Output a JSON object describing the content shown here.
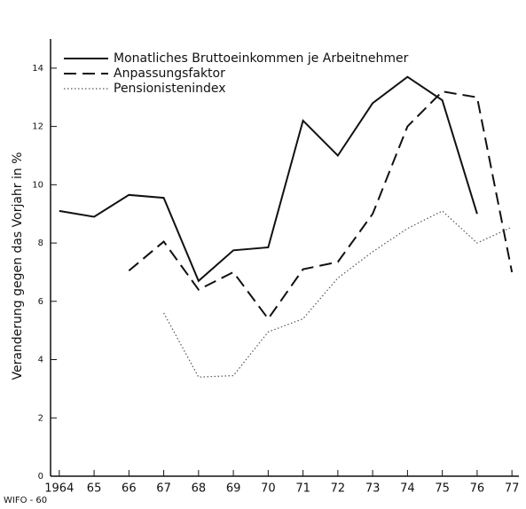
{
  "chart_data": {
    "type": "line",
    "y_label": "Veranderung gegen das Vorjahr in %",
    "source": "WIFO - 60",
    "x": [
      1964,
      1965,
      1966,
      1967,
      1968,
      1969,
      1970,
      1971,
      1972,
      1973,
      1974,
      1975,
      1976,
      1977
    ],
    "series": [
      {
        "name": "Monatliches Bruttoeinkommen je Arbeitnehmer",
        "color": "#111111",
        "dash": "solid",
        "values": [
          9.1,
          8.9,
          9.65,
          9.55,
          6.7,
          7.75,
          7.85,
          12.2,
          11.0,
          12.8,
          13.7,
          12.9,
          9.0,
          null
        ]
      },
      {
        "name": "Anpassungsfaktor",
        "color": "#111111",
        "dash": "dashed",
        "values": [
          null,
          null,
          7.05,
          8.05,
          6.4,
          7.0,
          5.4,
          7.1,
          7.35,
          9.0,
          12.0,
          13.2,
          13.0,
          7.0
        ]
      },
      {
        "name": "Pensionistenindex",
        "color": "#555555",
        "dash": "dotted",
        "values": [
          null,
          null,
          null,
          5.6,
          3.4,
          3.45,
          4.95,
          5.4,
          6.8,
          7.7,
          8.5,
          9.1,
          8.0,
          8.55
        ]
      }
    ],
    "xlim": [
      1963.75,
      1977.2
    ],
    "xticks": [
      {
        "value": 1964,
        "label": "1964"
      },
      {
        "value": 1965,
        "label": "65"
      },
      {
        "value": 1966,
        "label": "66"
      },
      {
        "value": 1967,
        "label": "67"
      },
      {
        "value": 1968,
        "label": "68"
      },
      {
        "value": 1969,
        "label": "69"
      },
      {
        "value": 1970,
        "label": "70"
      },
      {
        "value": 1971,
        "label": "71"
      },
      {
        "value": 1972,
        "label": "72"
      },
      {
        "value": 1973,
        "label": "73"
      },
      {
        "value": 1974,
        "label": "74"
      },
      {
        "value": 1975,
        "label": "75"
      },
      {
        "value": 1976,
        "label": "76"
      },
      {
        "value": 1977,
        "label": "77"
      }
    ],
    "ylim": [
      0,
      15
    ],
    "yticks": [
      0,
      2,
      4,
      6,
      8,
      10,
      12,
      14
    ],
    "legend": "upper-left"
  }
}
